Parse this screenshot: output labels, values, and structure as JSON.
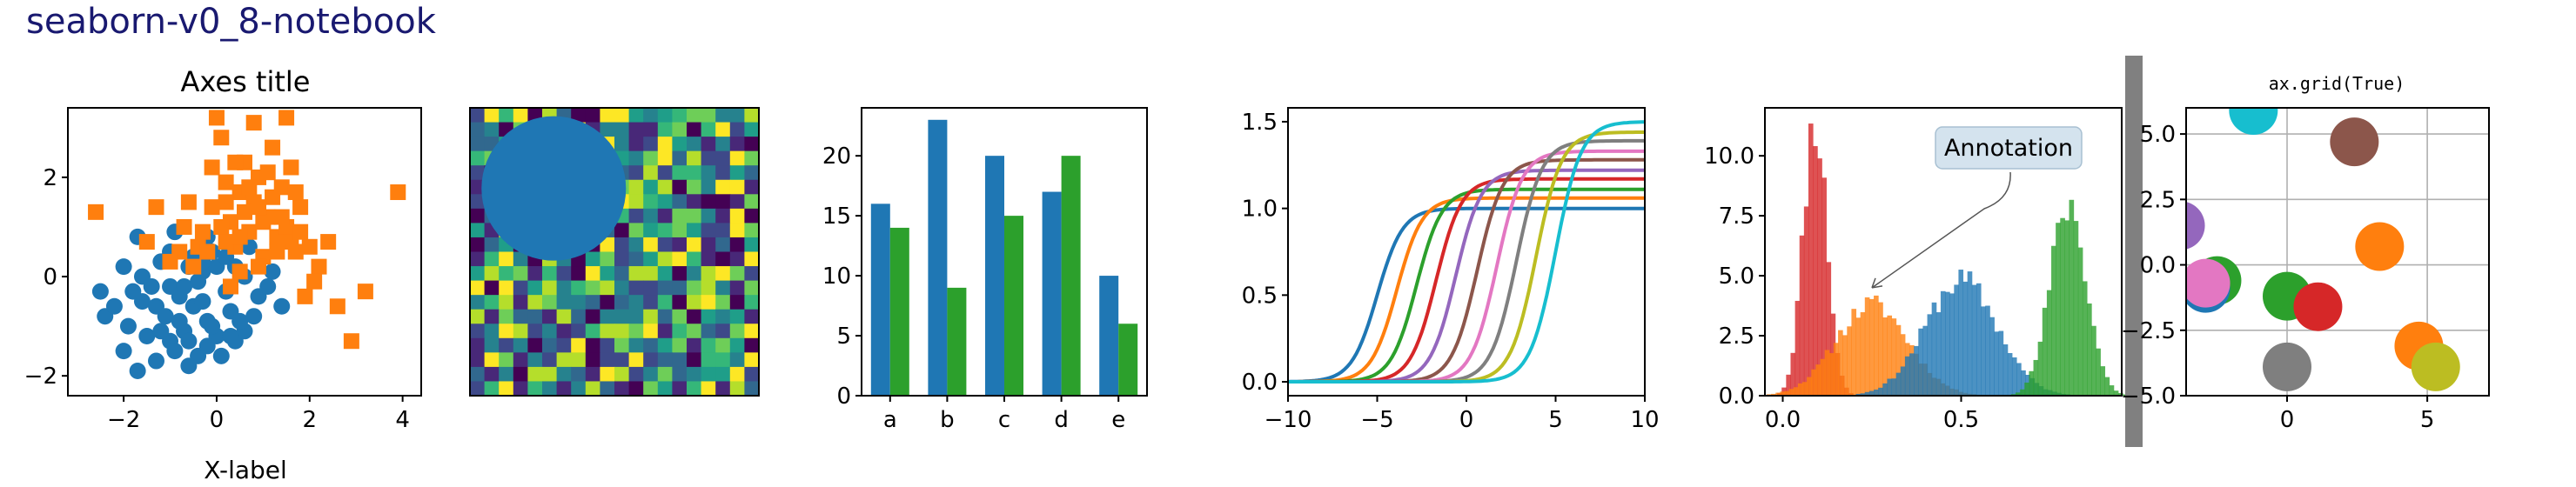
{
  "figure_title": "seaborn-v0_8-notebook",
  "chart_data": [
    {
      "type": "scatter",
      "title": "Axes title",
      "xlabel": "X-label",
      "ylabel": "",
      "xlim": [
        -3.2,
        4.4
      ],
      "ylim": [
        -2.4,
        3.4
      ],
      "xticks": [
        -2,
        0,
        2,
        4
      ],
      "yticks": [
        -2,
        0,
        2
      ],
      "series": [
        {
          "marker": "circle",
          "color": "#1f77b4",
          "points": [
            [
              -0.2,
              -0.9
            ],
            [
              -0.8,
              -0.4
            ],
            [
              -1.0,
              -0.2
            ],
            [
              -1.2,
              0.3
            ],
            [
              -0.5,
              0.4
            ],
            [
              -0.3,
              0.1
            ],
            [
              0.2,
              -0.3
            ],
            [
              0.4,
              0.2
            ],
            [
              -0.1,
              0.5
            ],
            [
              -1.6,
              -0.5
            ],
            [
              -1.9,
              -1.0
            ],
            [
              -2.4,
              -0.8
            ],
            [
              -1.3,
              -1.7
            ],
            [
              -1.0,
              -1.3
            ],
            [
              -0.7,
              -1.1
            ],
            [
              -0.4,
              -1.6
            ],
            [
              0.0,
              -1.2
            ],
            [
              0.4,
              -1.3
            ],
            [
              0.6,
              -1.1
            ],
            [
              0.9,
              -0.4
            ],
            [
              1.2,
              0.1
            ],
            [
              1.1,
              -0.2
            ],
            [
              0.7,
              0.6
            ],
            [
              -0.6,
              0.2
            ],
            [
              -1.4,
              -0.2
            ],
            [
              -2.0,
              0.2
            ],
            [
              -1.7,
              0.8
            ],
            [
              -0.9,
              0.9
            ],
            [
              -0.2,
              0.8
            ],
            [
              0.3,
              -0.7
            ],
            [
              -0.5,
              -0.6
            ],
            [
              -1.1,
              -0.8
            ],
            [
              -1.5,
              -1.2
            ],
            [
              -0.6,
              -1.8
            ],
            [
              -1.7,
              -1.9
            ],
            [
              -2.0,
              -1.5
            ],
            [
              0.1,
              -1.6
            ],
            [
              0.5,
              -0.9
            ],
            [
              -0.3,
              -0.5
            ],
            [
              -0.8,
              -0.9
            ],
            [
              -1.3,
              -0.6
            ],
            [
              -0.7,
              -0.2
            ],
            [
              0.0,
              0.2
            ],
            [
              -0.4,
              -0.1
            ],
            [
              -1.0,
              0.5
            ],
            [
              -1.8,
              -0.3
            ],
            [
              -2.5,
              -0.3
            ],
            [
              0.8,
              -0.8
            ],
            [
              1.4,
              -0.6
            ],
            [
              0.2,
              0.4
            ],
            [
              -0.1,
              -1.0
            ],
            [
              -0.9,
              -1.5
            ],
            [
              -1.2,
              -1.1
            ],
            [
              -0.6,
              -1.3
            ],
            [
              -0.2,
              -1.4
            ],
            [
              0.3,
              -1.2
            ],
            [
              -1.6,
              0.0
            ],
            [
              -2.2,
              -0.6
            ],
            [
              -0.3,
              0.3
            ],
            [
              0.6,
              0.0
            ]
          ]
        },
        {
          "marker": "square",
          "color": "#ff7f0e",
          "points": [
            [
              -2.6,
              1.3
            ],
            [
              -1.5,
              0.7
            ],
            [
              -1.3,
              1.4
            ],
            [
              -0.8,
              0.5
            ],
            [
              -0.6,
              1.5
            ],
            [
              -0.5,
              0.2
            ],
            [
              -0.3,
              0.9
            ],
            [
              -0.1,
              2.2
            ],
            [
              0.0,
              3.2
            ],
            [
              0.1,
              2.8
            ],
            [
              0.2,
              1.9
            ],
            [
              0.3,
              1.1
            ],
            [
              0.4,
              0.6
            ],
            [
              0.5,
              1.7
            ],
            [
              0.6,
              2.3
            ],
            [
              0.7,
              0.9
            ],
            [
              0.8,
              1.5
            ],
            [
              0.9,
              2.0
            ],
            [
              1.0,
              0.4
            ],
            [
              1.1,
              1.2
            ],
            [
              1.2,
              2.6
            ],
            [
              1.3,
              0.8
            ],
            [
              1.4,
              1.8
            ],
            [
              1.5,
              1.0
            ],
            [
              1.6,
              2.2
            ],
            [
              1.7,
              0.5
            ],
            [
              1.8,
              1.4
            ],
            [
              1.9,
              -0.4
            ],
            [
              2.0,
              0.6
            ],
            [
              2.2,
              0.2
            ],
            [
              2.4,
              0.7
            ],
            [
              2.6,
              -0.6
            ],
            [
              2.9,
              -1.3
            ],
            [
              3.2,
              -0.3
            ],
            [
              3.9,
              1.7
            ],
            [
              1.5,
              3.2
            ],
            [
              0.8,
              3.1
            ],
            [
              -0.1,
              1.4
            ],
            [
              0.2,
              0.7
            ],
            [
              0.6,
              1.3
            ],
            [
              0.9,
              0.2
            ],
            [
              1.2,
              1.6
            ],
            [
              1.6,
              0.7
            ],
            [
              -1.0,
              0.3
            ],
            [
              -0.4,
              0.6
            ],
            [
              0.1,
              1.0
            ],
            [
              0.4,
              2.3
            ],
            [
              0.7,
              1.8
            ],
            [
              1.0,
              1.1
            ],
            [
              1.3,
              0.5
            ],
            [
              1.8,
              0.9
            ],
            [
              2.1,
              -0.1
            ],
            [
              0.3,
              -0.2
            ],
            [
              -0.2,
              0.5
            ],
            [
              0.5,
              0.1
            ],
            [
              1.1,
              2.1
            ],
            [
              1.4,
              1.2
            ],
            [
              0.2,
              1.5
            ],
            [
              -0.7,
              1.0
            ],
            [
              0.9,
              1.4
            ],
            [
              1.7,
              1.7
            ],
            [
              0.5,
              0.8
            ]
          ]
        }
      ]
    },
    {
      "type": "heatmap",
      "rows": 20,
      "cols": 20,
      "seed": 7,
      "colormap": "viridis",
      "overlay": "circle",
      "overlay_color": "#1f77b4"
    },
    {
      "type": "bar",
      "categories": [
        "a",
        "b",
        "c",
        "d",
        "e"
      ],
      "ylim": [
        0,
        24
      ],
      "yticks": [
        0,
        5,
        10,
        15,
        20
      ],
      "series": [
        {
          "color": "#1f77b4",
          "values": [
            16,
            23,
            20,
            17,
            10
          ]
        },
        {
          "color": "#2ca02c",
          "values": [
            14,
            9,
            15,
            20,
            6
          ]
        }
      ]
    },
    {
      "type": "line",
      "xlim": [
        -10,
        10
      ],
      "ylim": [
        -0.08,
        1.58
      ],
      "xticks": [
        -10,
        -5,
        0,
        5,
        10
      ],
      "yticks": [
        0.0,
        0.5,
        1.0,
        1.5
      ],
      "ytick_labels": [
        "0.0",
        "0.5",
        "1.0",
        "1.5"
      ],
      "series": [
        {
          "color": "#1f77b4",
          "shift": -5.0,
          "amplitude": 1.0
        },
        {
          "color": "#ff7f0e",
          "shift": -3.9,
          "amplitude": 1.06
        },
        {
          "color": "#2ca02c",
          "shift": -2.8,
          "amplitude": 1.11
        },
        {
          "color": "#d62728",
          "shift": -1.7,
          "amplitude": 1.17
        },
        {
          "color": "#9467bd",
          "shift": -0.6,
          "amplitude": 1.22
        },
        {
          "color": "#8c564b",
          "shift": 0.6,
          "amplitude": 1.28
        },
        {
          "color": "#e377c2",
          "shift": 1.7,
          "amplitude": 1.33
        },
        {
          "color": "#7f7f7f",
          "shift": 2.8,
          "amplitude": 1.39
        },
        {
          "color": "#bcbd22",
          "shift": 3.9,
          "amplitude": 1.44
        },
        {
          "color": "#17becf",
          "shift": 5.0,
          "amplitude": 1.5
        }
      ]
    },
    {
      "type": "area",
      "subtype": "histogram",
      "xlim": [
        -0.05,
        0.95
      ],
      "ylim": [
        0,
        12
      ],
      "xticks": [
        0.0,
        0.5
      ],
      "xtick_labels": [
        "0.0",
        "0.5"
      ],
      "yticks": [
        0,
        2.5,
        5,
        7.5,
        10
      ],
      "ytick_labels": [
        "0.0",
        "2.5",
        "5.0",
        "7.5",
        "10.0"
      ],
      "series": [
        {
          "color": "#d62728",
          "mean": 0.09,
          "sd": 0.033,
          "peak": 11.5
        },
        {
          "color": "#ff7f0e",
          "mean": 0.25,
          "sd": 0.1,
          "peak": 3.8
        },
        {
          "color": "#1f77b4",
          "mean": 0.5,
          "sd": 0.1,
          "peak": 4.8
        },
        {
          "color": "#2ca02c",
          "mean": 0.8,
          "sd": 0.05,
          "peak": 8.0
        }
      ],
      "annotation": {
        "text": "Annotation",
        "target": [
          0.25,
          4.5
        ]
      }
    },
    {
      "type": "scatter",
      "title": "ax.grid(True)",
      "grid": true,
      "xlim": [
        -3.6,
        7.2
      ],
      "ylim": [
        -5,
        6
      ],
      "xticks": [
        0,
        5
      ],
      "yticks": [
        -5,
        -2.5,
        0,
        2.5,
        5
      ],
      "ytick_labels": [
        "−5.0",
        "−2.5",
        "0.0",
        "2.5",
        "5.0"
      ],
      "points": [
        {
          "x": -1.2,
          "y": 5.9,
          "color": "#17becf"
        },
        {
          "x": 2.4,
          "y": 4.7,
          "color": "#8c564b"
        },
        {
          "x": -3.8,
          "y": 1.5,
          "color": "#9467bd"
        },
        {
          "x": 3.3,
          "y": 0.7,
          "color": "#ff7f0e"
        },
        {
          "x": -2.5,
          "y": -0.6,
          "color": "#2ca02c"
        },
        {
          "x": -2.9,
          "y": -0.9,
          "color": "#1f77b4"
        },
        {
          "x": -2.9,
          "y": -0.7,
          "color": "#e377c2"
        },
        {
          "x": 0.0,
          "y": -1.2,
          "color": "#2ca02c"
        },
        {
          "x": 1.1,
          "y": -1.6,
          "color": "#d62728"
        },
        {
          "x": 4.7,
          "y": -3.1,
          "color": "#ff7f0e"
        },
        {
          "x": 5.3,
          "y": -3.9,
          "color": "#bcbd22"
        },
        {
          "x": 0.0,
          "y": -3.9,
          "color": "#7f7f7f"
        }
      ]
    }
  ]
}
